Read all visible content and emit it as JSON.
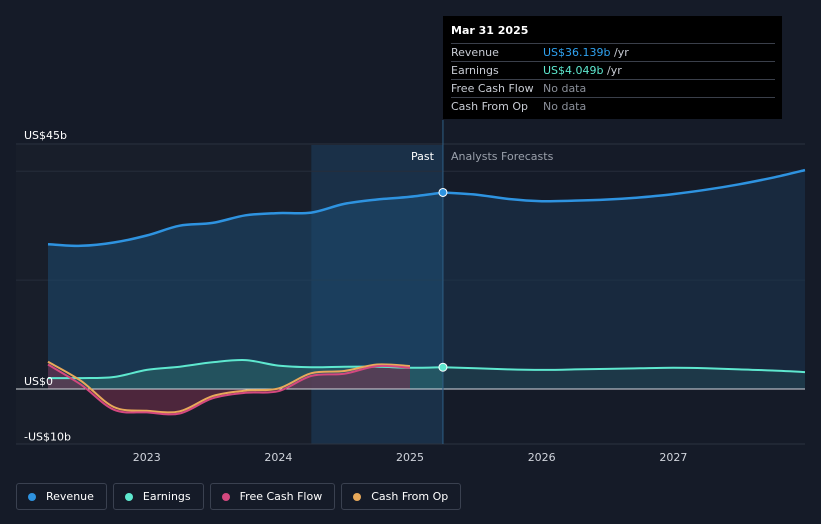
{
  "tooltip": {
    "date": "Mar 31 2025",
    "rows": [
      {
        "label": "Revenue",
        "value": "US$36.139b",
        "unit": " /yr"
      },
      {
        "label": "Earnings",
        "value": "US$4.049b",
        "unit": " /yr"
      },
      {
        "label": "Free Cash Flow",
        "value": "No data"
      },
      {
        "label": "Cash From Op",
        "value": "No data"
      }
    ]
  },
  "legend": [
    {
      "label": "Revenue",
      "color": "#2e93e0"
    },
    {
      "label": "Earnings",
      "color": "#5ee8cf"
    },
    {
      "label": "Free Cash Flow",
      "color": "#d4487f"
    },
    {
      "label": "Cash From Op",
      "color": "#e8a95a"
    }
  ],
  "chart_data": {
    "type": "line",
    "title": "",
    "ylim": [
      -10,
      45
    ],
    "yticks": [
      {
        "value": 45,
        "label": "US$45b"
      },
      {
        "value": 0,
        "label": "US$0"
      },
      {
        "value": -10,
        "label": "-US$10b"
      }
    ],
    "xlim": [
      2022.25,
      2028.0
    ],
    "xticks": [
      {
        "value": 2023,
        "label": "2023"
      },
      {
        "value": 2024,
        "label": "2024"
      },
      {
        "value": 2025,
        "label": "2025"
      },
      {
        "value": 2026,
        "label": "2026"
      },
      {
        "value": 2027,
        "label": "2027"
      }
    ],
    "shade_start": 2024.25,
    "past_end": 2025.25,
    "past_label": "Past",
    "forecast_label": "Analysts Forecasts",
    "colors": {
      "revenue": "#2e93e0",
      "earnings": "#5ee8cf",
      "fcf": "#d4487f",
      "cfo": "#e8a95a"
    },
    "series": [
      {
        "name": "Revenue",
        "key": "revenue",
        "x": [
          2022.25,
          2022.5,
          2022.75,
          2023.0,
          2023.25,
          2023.5,
          2023.75,
          2024.0,
          2024.25,
          2024.5,
          2024.75,
          2025.0,
          2025.25
        ],
        "y": [
          26.6,
          26.3,
          26.9,
          28.2,
          30.0,
          30.5,
          31.9,
          32.3,
          32.4,
          34.0,
          34.8,
          35.3,
          36.1
        ]
      },
      {
        "name": "Revenue Forecast",
        "key": "revenue",
        "x": [
          2025.25,
          2025.5,
          2025.75,
          2026.0,
          2026.25,
          2026.5,
          2026.75,
          2027.0,
          2027.25,
          2027.5,
          2027.75,
          2028.0
        ],
        "y": [
          36.1,
          35.7,
          34.9,
          34.5,
          34.6,
          34.8,
          35.2,
          35.8,
          36.6,
          37.6,
          38.8,
          40.2
        ]
      },
      {
        "name": "Earnings",
        "key": "earnings",
        "x": [
          2022.25,
          2022.5,
          2022.75,
          2023.0,
          2023.25,
          2023.5,
          2023.75,
          2024.0,
          2024.25,
          2024.5,
          2024.75,
          2025.0,
          2025.25
        ],
        "y": [
          2.0,
          2.0,
          2.2,
          3.5,
          4.1,
          4.9,
          5.3,
          4.3,
          4.0,
          4.1,
          4.1,
          3.9,
          4.0
        ]
      },
      {
        "name": "Earnings Forecast",
        "key": "earnings",
        "x": [
          2025.25,
          2025.5,
          2025.75,
          2026.0,
          2026.25,
          2026.5,
          2026.75,
          2027.0,
          2027.25,
          2027.5,
          2027.75,
          2028.0
        ],
        "y": [
          4.0,
          3.8,
          3.6,
          3.5,
          3.6,
          3.7,
          3.8,
          3.9,
          3.8,
          3.6,
          3.4,
          3.1
        ]
      },
      {
        "name": "Free Cash Flow",
        "key": "fcf",
        "x": [
          2022.25,
          2022.5,
          2022.75,
          2023.0,
          2023.25,
          2023.5,
          2023.75,
          2024.0,
          2024.25,
          2024.5,
          2024.75,
          2025.0
        ],
        "y": [
          4.5,
          0.8,
          -3.8,
          -4.3,
          -4.5,
          -1.7,
          -0.7,
          -0.4,
          2.4,
          2.8,
          4.2,
          3.9
        ]
      },
      {
        "name": "Cash From Op",
        "key": "cfo",
        "x": [
          2022.25,
          2022.5,
          2022.75,
          2023.0,
          2023.25,
          2023.5,
          2023.75,
          2024.0,
          2024.25,
          2024.5,
          2024.75,
          2025.0
        ],
        "y": [
          5.0,
          1.5,
          -3.3,
          -4.0,
          -4.1,
          -1.3,
          -0.3,
          0.1,
          2.9,
          3.3,
          4.5,
          4.2
        ]
      }
    ],
    "markers": [
      {
        "series": "Revenue",
        "x": 2025.25,
        "y": 36.1
      },
      {
        "series": "Earnings",
        "x": 2025.25,
        "y": 4.0
      }
    ]
  }
}
